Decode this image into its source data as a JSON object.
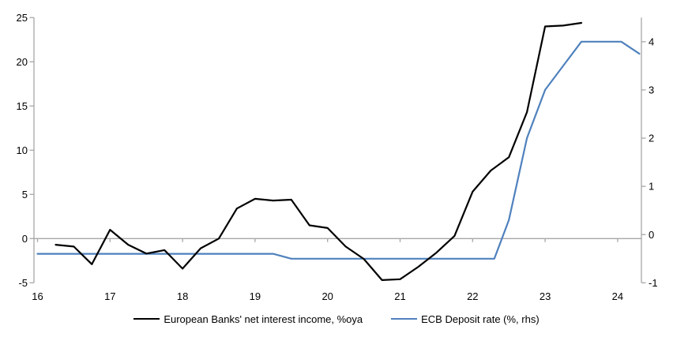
{
  "chart_data": {
    "type": "line",
    "title": "",
    "xlabel": "",
    "ylabel_left": "",
    "ylabel_right": "",
    "x_ticks": [
      "16",
      "17",
      "18",
      "19",
      "20",
      "21",
      "22",
      "23",
      "24"
    ],
    "y_ticks_left": [
      25,
      20,
      15,
      10,
      5,
      0,
      -5
    ],
    "y_ticks_right": [
      4,
      3,
      2,
      1,
      0,
      -1
    ],
    "ylim_left": [
      -5,
      25
    ],
    "ylim_right": [
      -1,
      4.5
    ],
    "xlim": [
      15.95,
      24.33
    ],
    "gridlines": "horizontal zero line only, with year tick marks on it",
    "legend_position": "bottom-center",
    "axis_color": "#a6a6a6",
    "series": [
      {
        "name": "European Banks' net interest income, %oya",
        "axis": "left",
        "color": "#000000",
        "points": [
          [
            16.25,
            -0.7
          ],
          [
            16.5,
            -0.9
          ],
          [
            16.75,
            -2.9
          ],
          [
            17.0,
            1.0
          ],
          [
            17.25,
            -0.7
          ],
          [
            17.5,
            -1.7
          ],
          [
            17.75,
            -1.3
          ],
          [
            18.0,
            -3.4
          ],
          [
            18.25,
            -1.1
          ],
          [
            18.5,
            0.0
          ],
          [
            18.75,
            3.4
          ],
          [
            19.0,
            4.5
          ],
          [
            19.25,
            4.3
          ],
          [
            19.5,
            4.4
          ],
          [
            19.75,
            1.5
          ],
          [
            20.0,
            1.2
          ],
          [
            20.25,
            -0.9
          ],
          [
            20.5,
            -2.3
          ],
          [
            20.75,
            -4.7
          ],
          [
            21.0,
            -4.6
          ],
          [
            21.25,
            -3.2
          ],
          [
            21.5,
            -1.6
          ],
          [
            21.75,
            0.3
          ],
          [
            22.0,
            5.3
          ],
          [
            22.25,
            7.7
          ],
          [
            22.5,
            9.2
          ],
          [
            22.75,
            14.3
          ],
          [
            23.0,
            24.0
          ],
          [
            23.25,
            24.1
          ],
          [
            23.5,
            24.4
          ]
        ]
      },
      {
        "name": "ECB Deposit rate (%, rhs)",
        "axis": "right",
        "color": "#4f81bd",
        "points": [
          [
            16.0,
            -0.4
          ],
          [
            19.25,
            -0.4
          ],
          [
            19.5,
            -0.5
          ],
          [
            22.3,
            -0.5
          ],
          [
            22.5,
            0.3
          ],
          [
            22.75,
            2.0
          ],
          [
            23.0,
            3.0
          ],
          [
            23.25,
            3.5
          ],
          [
            23.5,
            4.0
          ],
          [
            24.05,
            4.0
          ],
          [
            24.3,
            3.75
          ]
        ]
      }
    ]
  }
}
